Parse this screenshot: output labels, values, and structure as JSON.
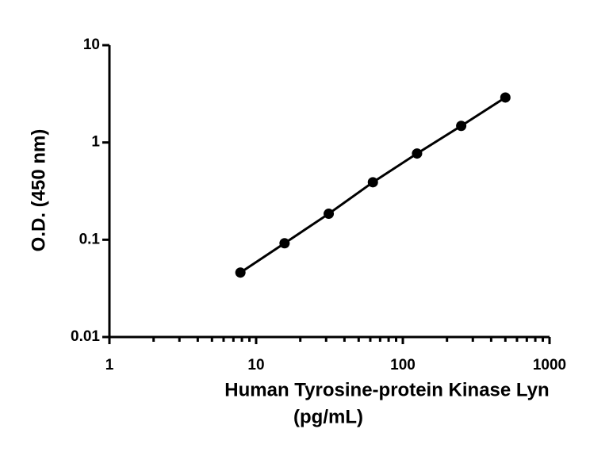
{
  "chart_data": {
    "type": "scatter",
    "connect": true,
    "log_x": true,
    "log_y": true,
    "minor_x_ticks": true,
    "xlabel": [
      "Human Tyrosine-protein Kinase Lyn",
      "(pg/mL)"
    ],
    "ylabel": "O.D. (450 nm)",
    "x": [
      7.8125,
      15.625,
      31.25,
      62.5,
      125,
      250,
      500
    ],
    "series": [
      {
        "color": "#000000",
        "values": [
          0.046,
          0.092,
          0.185,
          0.39,
          0.77,
          1.48,
          2.9
        ]
      }
    ],
    "xlim": [
      1,
      1000
    ],
    "xticks": [
      1,
      10,
      100,
      1000
    ],
    "ylim": [
      0.01,
      10
    ],
    "yticks": [
      10,
      1,
      0.1,
      0.01
    ]
  }
}
